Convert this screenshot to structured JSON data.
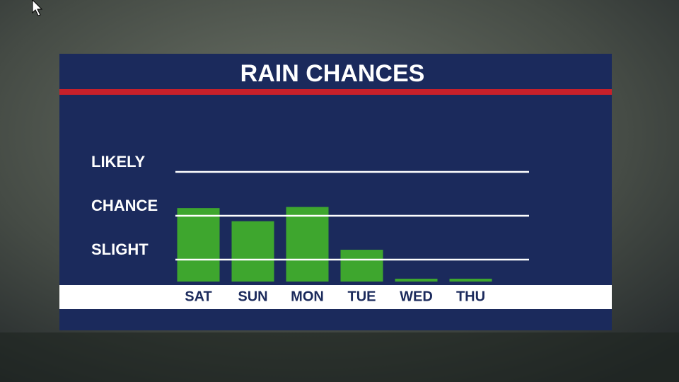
{
  "chart_data": {
    "type": "bar",
    "title": "RAIN CHANCES",
    "categories": [
      "SAT",
      "SUN",
      "MON",
      "TUE",
      "WED",
      "THU"
    ],
    "values": [
      3.35,
      2.75,
      3.4,
      1.45,
      0.13,
      0.13
    ],
    "color": "#3ea62e",
    "ylim": [
      0,
      5
    ],
    "yticks": [
      {
        "value": 1,
        "label": "SLIGHT"
      },
      {
        "value": 3,
        "label": "CHANCE"
      },
      {
        "value": 5,
        "label": "LIKELY"
      }
    ],
    "grid": true
  }
}
